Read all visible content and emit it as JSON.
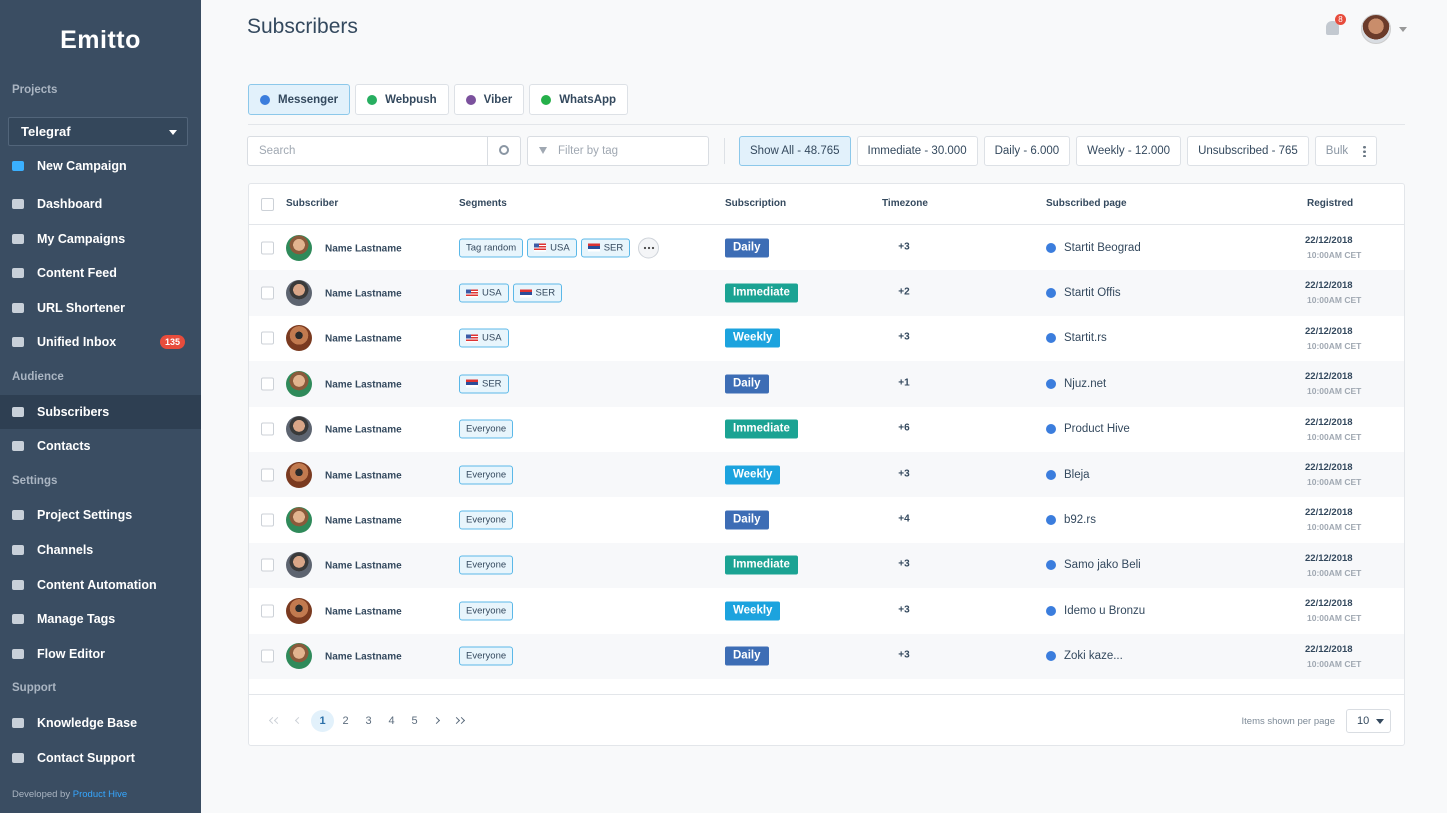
{
  "sidebar": {
    "logo": "Emitto",
    "projects_label": "Projects",
    "project": "Telegraf",
    "new_campaign": "New Campaign",
    "groups": [
      {
        "items": [
          {
            "label": "Dashboard"
          },
          {
            "label": "My Campaigns"
          },
          {
            "label": "Content Feed"
          },
          {
            "label": "URL Shortener"
          },
          {
            "label": "Unified Inbox",
            "badge": "135"
          }
        ]
      },
      {
        "heading": "Audience",
        "items": [
          {
            "label": "Subscribers",
            "active": true
          },
          {
            "label": "Contacts"
          }
        ]
      },
      {
        "heading": "Settings",
        "items": [
          {
            "label": "Project Settings"
          },
          {
            "label": "Channels"
          },
          {
            "label": "Content Automation"
          },
          {
            "label": "Manage Tags"
          },
          {
            "label": "Flow Editor"
          }
        ]
      },
      {
        "heading": "Support",
        "items": [
          {
            "label": "Knowledge Base"
          },
          {
            "label": "Contact Support"
          }
        ]
      }
    ],
    "footer_prefix": "Developed by",
    "footer_link": "Product Hive"
  },
  "header": {
    "title": "Subscribers",
    "notifications": "8"
  },
  "tabs": [
    {
      "label": "Messenger",
      "active": true,
      "icon_color": "#3b7ddd"
    },
    {
      "label": "Webpush",
      "icon_color": "#27ae60"
    },
    {
      "label": "Viber",
      "icon_color": "#7b519d"
    },
    {
      "label": "WhatsApp",
      "icon_color": "#25b04a"
    }
  ],
  "search_placeholder": "Search",
  "filter_placeholder": "Filter by tag",
  "filters": [
    {
      "label": "Show All - 48.765",
      "active": true
    },
    {
      "label": "Immediate - 30.000"
    },
    {
      "label": "Daily - 6.000"
    },
    {
      "label": "Weekly - 12.000"
    },
    {
      "label": "Unsubscribed - 765"
    }
  ],
  "bulk": "Bulk",
  "table": {
    "columns": [
      "Subscriber",
      "Segments",
      "Subscription",
      "Timezone",
      "Subscribed page",
      "Registred"
    ],
    "rows": [
      {
        "name": "Name Lastname",
        "segments": [
          {
            "label": "Tag random"
          },
          {
            "label": "USA",
            "flag": "us"
          },
          {
            "label": "SER",
            "flag": "rs"
          }
        ],
        "more": true,
        "subscription": {
          "label": "Daily",
          "color": "#3d6db5"
        },
        "timezone": "+3",
        "page": "Startit Beograd",
        "date": "22/12/2018",
        "time": "10:00AM CET"
      },
      {
        "name": "Name Lastname",
        "segments": [
          {
            "label": "USA",
            "flag": "us"
          },
          {
            "label": "SER",
            "flag": "rs"
          }
        ],
        "subscription": {
          "label": "Immediate",
          "color": "#1ba393"
        },
        "timezone": "+2",
        "page": "Startit Offis",
        "date": "22/12/2018",
        "time": "10:00AM CET"
      },
      {
        "name": "Name Lastname",
        "segments": [
          {
            "label": "USA",
            "flag": "us"
          }
        ],
        "subscription": {
          "label": "Weekly",
          "color": "#1ca3de"
        },
        "timezone": "+3",
        "page": "Startit.rs",
        "date": "22/12/2018",
        "time": "10:00AM CET"
      },
      {
        "name": "Name Lastname",
        "segments": [
          {
            "label": "SER",
            "flag": "rs"
          }
        ],
        "subscription": {
          "label": "Daily",
          "color": "#3d6db5"
        },
        "timezone": "+1",
        "page": "Njuz.net",
        "date": "22/12/2018",
        "time": "10:00AM CET"
      },
      {
        "name": "Name Lastname",
        "segments": [
          {
            "label": "Everyone"
          }
        ],
        "subscription": {
          "label": "Immediate",
          "color": "#1ba393"
        },
        "timezone": "+6",
        "page": "Product Hive",
        "date": "22/12/2018",
        "time": "10:00AM CET"
      },
      {
        "name": "Name Lastname",
        "segments": [
          {
            "label": "Everyone"
          }
        ],
        "subscription": {
          "label": "Weekly",
          "color": "#1ca3de"
        },
        "timezone": "+3",
        "page": "Bleja",
        "date": "22/12/2018",
        "time": "10:00AM CET"
      },
      {
        "name": "Name Lastname",
        "segments": [
          {
            "label": "Everyone"
          }
        ],
        "subscription": {
          "label": "Daily",
          "color": "#3d6db5"
        },
        "timezone": "+4",
        "page": "b92.rs",
        "date": "22/12/2018",
        "time": "10:00AM CET"
      },
      {
        "name": "Name Lastname",
        "segments": [
          {
            "label": "Everyone"
          }
        ],
        "subscription": {
          "label": "Immediate",
          "color": "#1ba393"
        },
        "timezone": "+3",
        "page": "Samo jako Beli",
        "date": "22/12/2018",
        "time": "10:00AM CET"
      },
      {
        "name": "Name Lastname",
        "segments": [
          {
            "label": "Everyone"
          }
        ],
        "subscription": {
          "label": "Weekly",
          "color": "#1ca3de"
        },
        "timezone": "+3",
        "page": "Idemo u Bronzu",
        "date": "22/12/2018",
        "time": "10:00AM CET"
      },
      {
        "name": "Name Lastname",
        "segments": [
          {
            "label": "Everyone"
          }
        ],
        "subscription": {
          "label": "Daily",
          "color": "#3d6db5"
        },
        "timezone": "+3",
        "page": "Zoki kaze...",
        "date": "22/12/2018",
        "time": "10:00AM CET"
      }
    ]
  },
  "pagination": {
    "pages": [
      {
        "label": "1",
        "active": true
      },
      {
        "label": "2"
      },
      {
        "label": "3"
      },
      {
        "label": "4"
      },
      {
        "label": "5"
      }
    ],
    "per_page_label": "Items shown per page",
    "per_page": "10"
  }
}
